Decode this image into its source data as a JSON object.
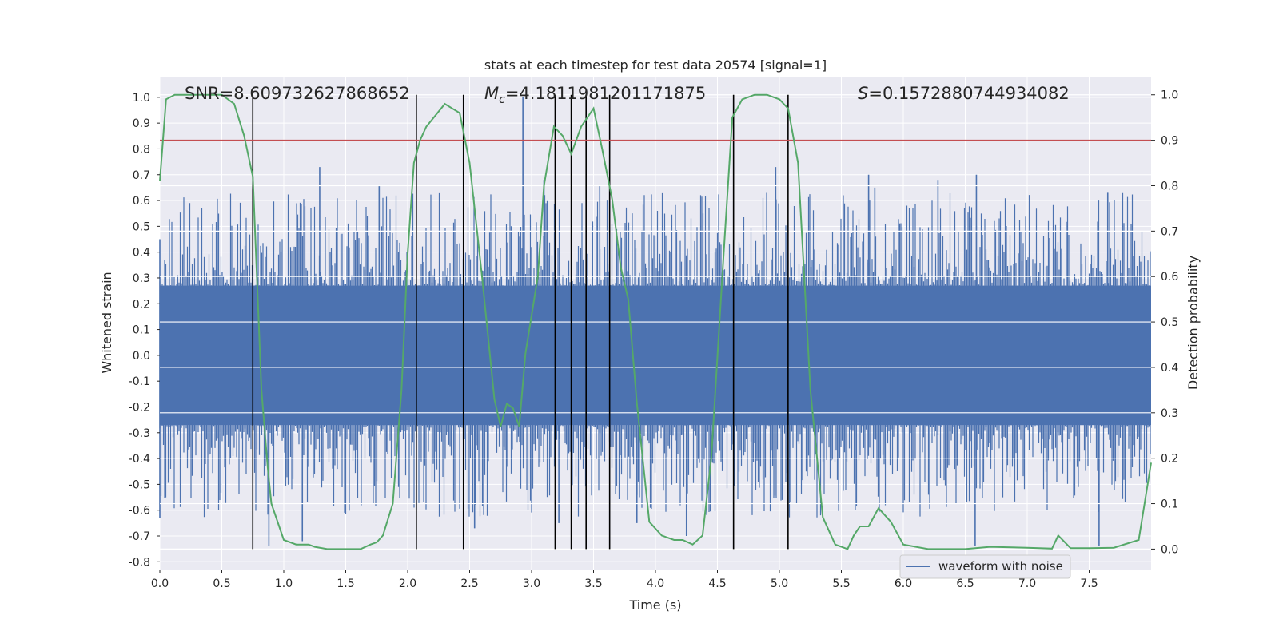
{
  "chart_data": {
    "type": "line",
    "title": "stats at each timestep for test data 20574 [signal=1]",
    "xlabel": "Time (s)",
    "ylabel_left": "Whitened strain",
    "ylabel_right": "Detection probability",
    "xlim": [
      0.0,
      8.0
    ],
    "ylim_left": [
      -0.83,
      1.08
    ],
    "ylim_right": [
      -0.045,
      1.04
    ],
    "x_ticks": [
      "0.0",
      "0.5",
      "1.0",
      "1.5",
      "2.0",
      "2.5",
      "3.0",
      "3.5",
      "4.0",
      "4.5",
      "5.0",
      "5.5",
      "6.0",
      "6.5",
      "7.0",
      "7.5"
    ],
    "y_left_ticks": [
      "1.0",
      "0.9",
      "0.8",
      "0.7",
      "0.6",
      "0.5",
      "0.4",
      "0.3",
      "0.2",
      "0.1",
      "0.0",
      "-0.1",
      "-0.2",
      "-0.3",
      "-0.4",
      "-0.5",
      "-0.6",
      "-0.7",
      "-0.8"
    ],
    "y_right_ticks": [
      "1.0",
      "0.9",
      "0.8",
      "0.7",
      "0.6",
      "0.5",
      "0.4",
      "0.3",
      "0.2",
      "0.1",
      "0.0"
    ],
    "grid": true,
    "legend_position": "lower-right",
    "annotations": {
      "snr": "SNR=8.609732627868652",
      "mc_symbol": "M",
      "mc_sub": "c",
      "mc_value": "=4.1811981201171875",
      "s_symbol": "S",
      "s_value": "=0.1572880744934082"
    },
    "threshold": {
      "value_right": 0.9,
      "color": "#c44e52"
    },
    "event_lines_x": [
      0.75,
      2.07,
      2.45,
      3.19,
      3.32,
      3.44,
      3.63,
      4.63,
      5.07
    ],
    "series": [
      {
        "name": "waveform with noise",
        "color": "#4c72b0",
        "band": {
          "x_start": 0.0,
          "x_end": 8.0,
          "core_low": -0.27,
          "core_high": 0.27
        },
        "spike_peaks": [
          {
            "x": 2.93,
            "y": 1.0
          },
          {
            "x": 1.29,
            "y": 0.73
          },
          {
            "x": 4.97,
            "y": 0.73
          },
          {
            "x": 0.0,
            "y": 0.45
          },
          {
            "x": 6.59,
            "y": 0.7
          },
          {
            "x": 7.65,
            "y": 0.63
          },
          {
            "x": 6.28,
            "y": 0.68
          },
          {
            "x": 5.77,
            "y": 0.65
          },
          {
            "x": 5.72,
            "y": 0.7
          },
          {
            "x": 3.55,
            "y": 0.66
          },
          {
            "x": 3.1,
            "y": 0.68
          },
          {
            "x": 1.77,
            "y": 0.66
          },
          {
            "x": 1.15,
            "y": -0.72
          },
          {
            "x": 0.88,
            "y": -0.74
          },
          {
            "x": 6.58,
            "y": -0.74
          },
          {
            "x": 7.58,
            "y": -0.74
          },
          {
            "x": 4.25,
            "y": -0.7
          },
          {
            "x": 3.85,
            "y": -0.65
          },
          {
            "x": 0.0,
            "y": -0.63
          },
          {
            "x": 2.54,
            "y": -0.67
          },
          {
            "x": 3.22,
            "y": -0.65
          }
        ]
      },
      {
        "name": "Detection probability",
        "color": "#55a868",
        "axis": "right",
        "x": [
          0.0,
          0.05,
          0.12,
          0.2,
          0.3,
          0.4,
          0.5,
          0.6,
          0.68,
          0.75,
          0.82,
          0.87,
          0.9,
          0.95,
          1.0,
          1.1,
          1.2,
          1.25,
          1.35,
          1.5,
          1.62,
          1.7,
          1.75,
          1.8,
          1.88,
          1.95,
          2.0,
          2.05,
          2.1,
          2.15,
          2.3,
          2.36,
          2.42,
          2.5,
          2.6,
          2.7,
          2.75,
          2.8,
          2.85,
          2.9,
          2.95,
          3.05,
          3.1,
          3.18,
          3.25,
          3.32,
          3.4,
          3.5,
          3.57,
          3.65,
          3.72,
          3.78,
          3.85,
          3.95,
          4.05,
          4.15,
          4.22,
          4.3,
          4.38,
          4.45,
          4.55,
          4.62,
          4.7,
          4.8,
          4.9,
          5.0,
          5.07,
          5.15,
          5.25,
          5.35,
          5.45,
          5.55,
          5.6,
          5.65,
          5.72,
          5.8,
          5.9,
          6.0,
          6.2,
          6.5,
          6.7,
          7.0,
          7.2,
          7.25,
          7.35,
          7.5,
          7.7,
          7.9,
          8.0
        ],
        "y": [
          0.81,
          0.99,
          1.0,
          1.0,
          1.0,
          1.0,
          1.0,
          0.98,
          0.91,
          0.82,
          0.35,
          0.18,
          0.1,
          0.06,
          0.02,
          0.01,
          0.01,
          0.005,
          0.0,
          0.0,
          0.0,
          0.01,
          0.015,
          0.03,
          0.1,
          0.35,
          0.65,
          0.85,
          0.9,
          0.93,
          0.98,
          0.97,
          0.96,
          0.85,
          0.6,
          0.33,
          0.27,
          0.32,
          0.31,
          0.27,
          0.43,
          0.6,
          0.8,
          0.93,
          0.91,
          0.87,
          0.93,
          0.97,
          0.88,
          0.77,
          0.62,
          0.55,
          0.32,
          0.06,
          0.03,
          0.02,
          0.02,
          0.01,
          0.03,
          0.2,
          0.65,
          0.95,
          0.99,
          1.0,
          1.0,
          0.99,
          0.97,
          0.85,
          0.35,
          0.07,
          0.01,
          0.0,
          0.03,
          0.05,
          0.05,
          0.09,
          0.06,
          0.01,
          0.0,
          0.0,
          0.005,
          0.003,
          0.001,
          0.03,
          0.002,
          0.002,
          0.003,
          0.02,
          0.19
        ]
      }
    ]
  }
}
